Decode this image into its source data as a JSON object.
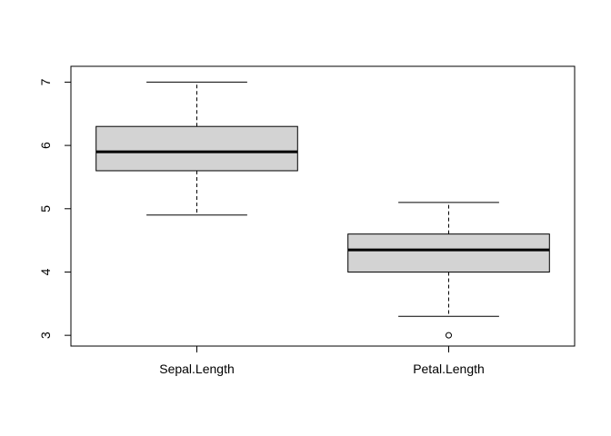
{
  "chart_data": {
    "type": "box",
    "title": "",
    "xlabel": "",
    "ylabel": "",
    "ylim": [
      2.83,
      7.25
    ],
    "yticks": [
      "3",
      "4",
      "5",
      "6",
      "7"
    ],
    "grid": false,
    "categories": [
      "Sepal.Length",
      "Petal.Length"
    ],
    "boxes": [
      {
        "label": "Sepal.Length",
        "whisker_low": 4.9,
        "q1": 5.6,
        "median": 5.9,
        "q3": 6.3,
        "whisker_high": 7.0,
        "outliers": []
      },
      {
        "label": "Petal.Length",
        "whisker_low": 3.3,
        "q1": 4.0,
        "median": 4.35,
        "q3": 4.6,
        "whisker_high": 5.1,
        "outliers": [
          3.0
        ]
      }
    ],
    "colors": {
      "box_fill": "#d3d3d3",
      "stroke": "#000000"
    }
  }
}
